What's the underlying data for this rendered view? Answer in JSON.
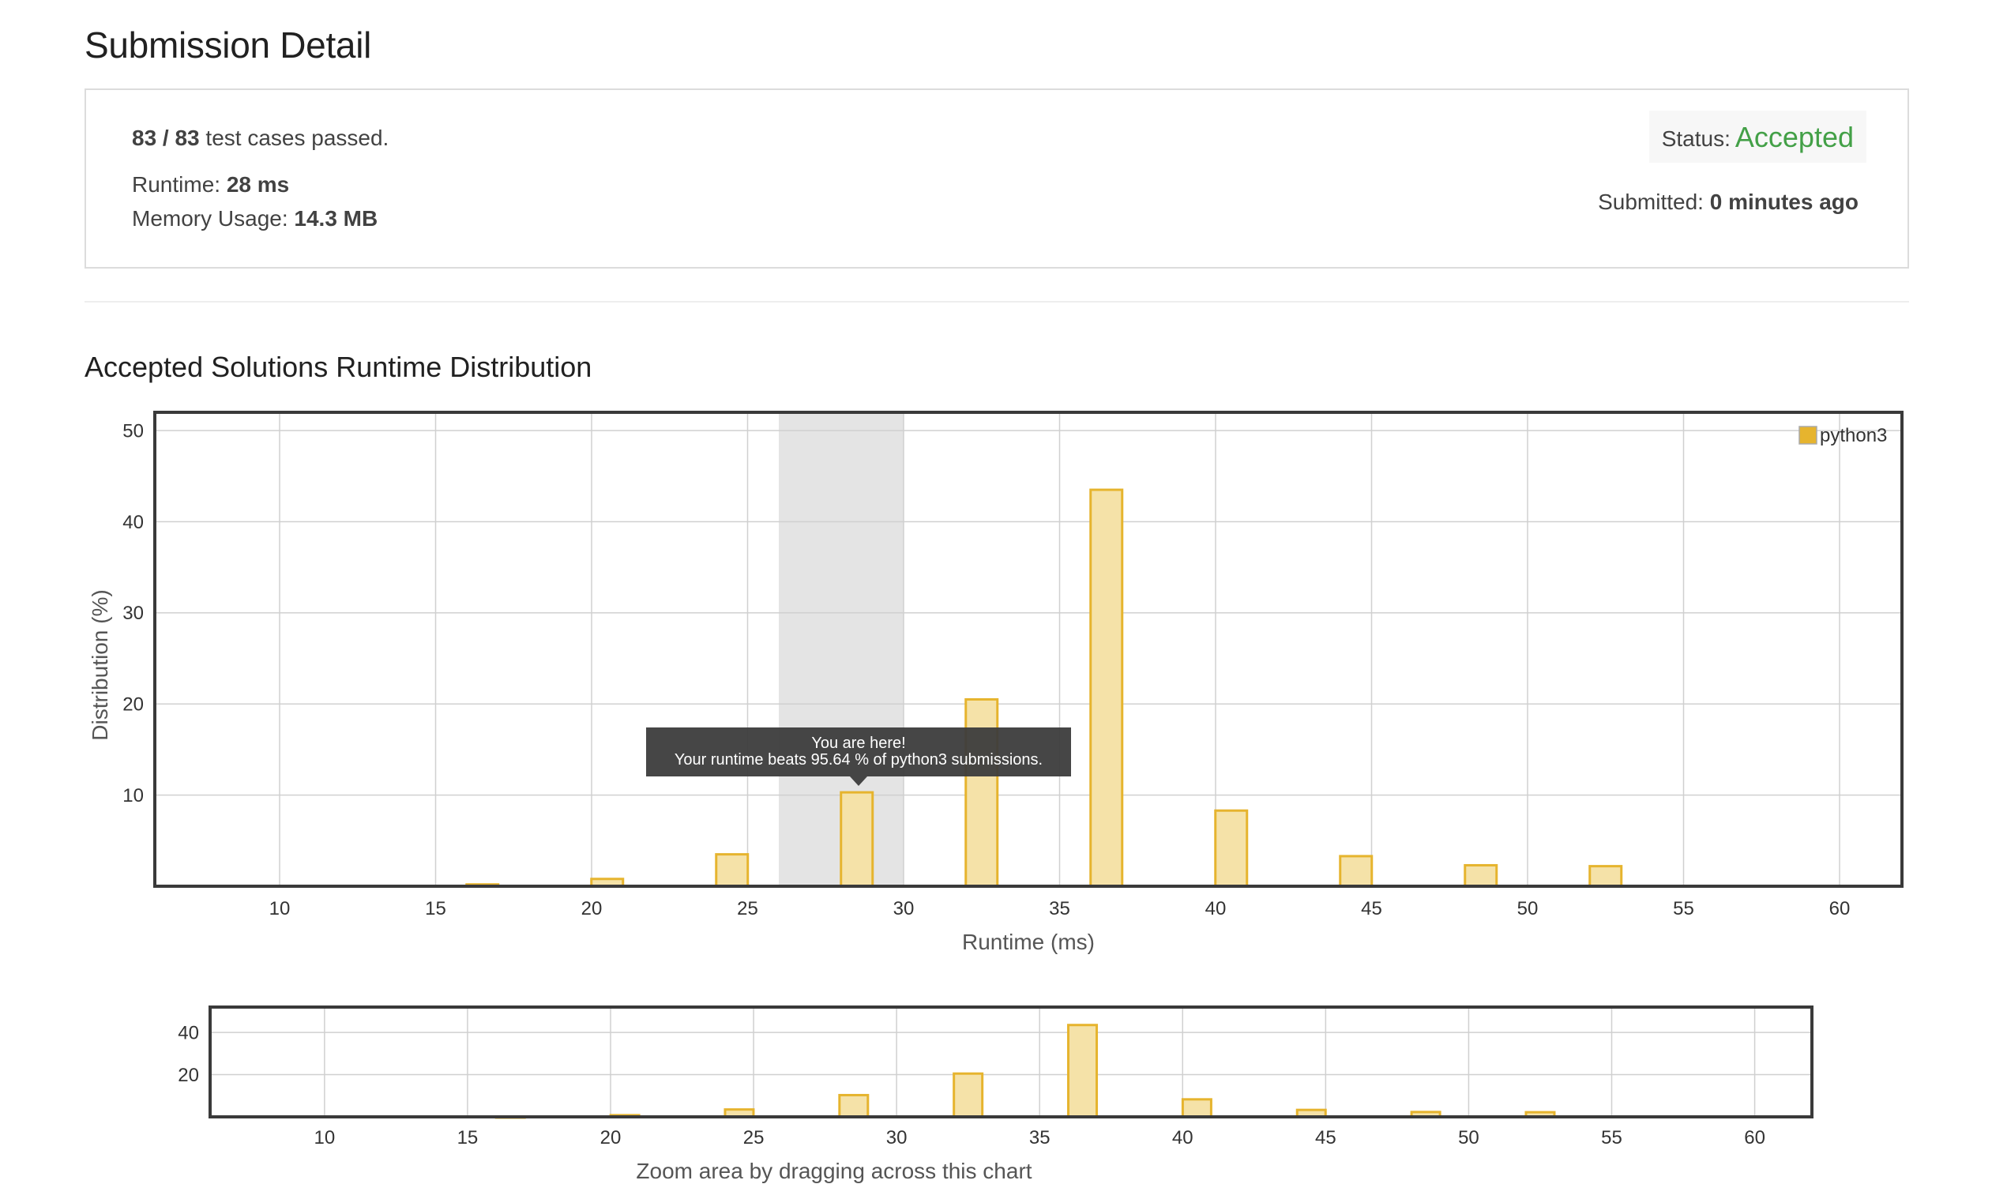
{
  "page": {
    "title": "Submission Detail"
  },
  "summary": {
    "tests_passed": "83 / 83",
    "tests_suffix": "test cases passed.",
    "runtime_label": "Runtime:",
    "runtime_value": "28 ms",
    "memory_label": "Memory Usage:",
    "memory_value": "14.3 MB",
    "status_label": "Status:",
    "status_value": "Accepted",
    "submitted_label": "Submitted:",
    "submitted_value": "0 minutes ago",
    "colors": {
      "accepted": "#43a047"
    }
  },
  "section": {
    "title": "Accepted Solutions Runtime Distribution"
  },
  "tooltip": {
    "line1": "You are here!",
    "line2": "Your runtime beats 95.64 % of python3 submissions."
  },
  "zoom": {
    "caption": "Zoom area by dragging across this chart"
  },
  "chart_data": [
    {
      "type": "bar",
      "xlabel": "Runtime (ms)",
      "ylabel": "Distribution (%)",
      "xlim": [
        6,
        62
      ],
      "ylim": [
        0,
        52
      ],
      "xticks": [
        10,
        15,
        20,
        25,
        30,
        35,
        40,
        45,
        50,
        55,
        60
      ],
      "yticks": [
        10,
        20,
        30,
        40,
        50
      ],
      "grid": true,
      "legend": "top-right",
      "highlight_range": [
        26,
        30
      ],
      "series": [
        {
          "name": "python3",
          "color": "#e6b42e",
          "fill": "#f5e2a8",
          "x": [
            16.5,
            20.5,
            24.5,
            28.5,
            32.5,
            36.5,
            40.5,
            44.5,
            48.5,
            52.5
          ],
          "values": [
            0.2,
            0.8,
            3.5,
            10.3,
            20.5,
            43.5,
            8.3,
            3.3,
            2.3,
            2.2
          ]
        }
      ]
    },
    {
      "type": "bar",
      "xlim": [
        6,
        62
      ],
      "ylim": [
        0,
        52
      ],
      "xticks": [
        10,
        15,
        20,
        25,
        30,
        35,
        40,
        45,
        50,
        55,
        60
      ],
      "yticks": [
        20,
        40
      ],
      "grid": true,
      "series": [
        {
          "name": "python3",
          "color": "#e6b42e",
          "fill": "#f5e2a8",
          "x": [
            16.5,
            20.5,
            24.5,
            28.5,
            32.5,
            36.5,
            40.5,
            44.5,
            48.5,
            52.5
          ],
          "values": [
            0.2,
            0.8,
            3.5,
            10.3,
            20.5,
            43.5,
            8.3,
            3.3,
            2.3,
            2.2
          ]
        }
      ]
    }
  ]
}
